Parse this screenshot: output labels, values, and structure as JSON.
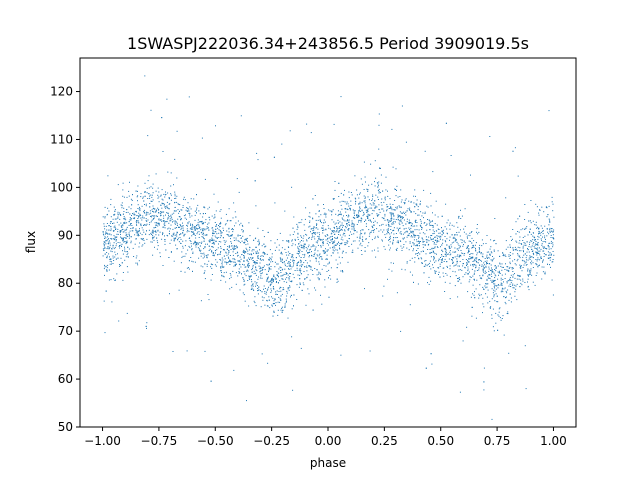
{
  "chart_data": {
    "type": "scatter",
    "title": "1SWASPJ222036.34+243856.5 Period 3909019.5s",
    "xlabel": "phase",
    "ylabel": "flux",
    "xlim": [
      -1.1,
      1.1
    ],
    "ylim": [
      50,
      127
    ],
    "xticks": [
      -1.0,
      -0.75,
      -0.5,
      -0.25,
      0.0,
      0.25,
      0.5,
      0.75,
      1.0
    ],
    "xtick_labels": [
      "−1.00",
      "−0.75",
      "−0.50",
      "−0.25",
      "0.00",
      "0.25",
      "0.50",
      "0.75",
      "1.00"
    ],
    "yticks": [
      50,
      60,
      70,
      80,
      90,
      100,
      110,
      120
    ],
    "ytick_labels": [
      "50",
      "60",
      "70",
      "80",
      "90",
      "100",
      "110",
      "120"
    ],
    "grid": false,
    "series": [
      {
        "color": "#1f77b4",
        "trend_x": [
          -1.0,
          -0.9,
          -0.8,
          -0.7,
          -0.6,
          -0.5,
          -0.4,
          -0.3,
          -0.25,
          -0.2,
          -0.1,
          0.0,
          0.1,
          0.2,
          0.3,
          0.4,
          0.5,
          0.6,
          0.7,
          0.75,
          0.8,
          0.9,
          1.0
        ],
        "trend_y": [
          88,
          91,
          94,
          94,
          91,
          88,
          86,
          83,
          80,
          82,
          87,
          89,
          92,
          95,
          93,
          90,
          88,
          86,
          83,
          80,
          82,
          87,
          89
        ],
        "scatter_halfwidth": 7
      }
    ]
  }
}
